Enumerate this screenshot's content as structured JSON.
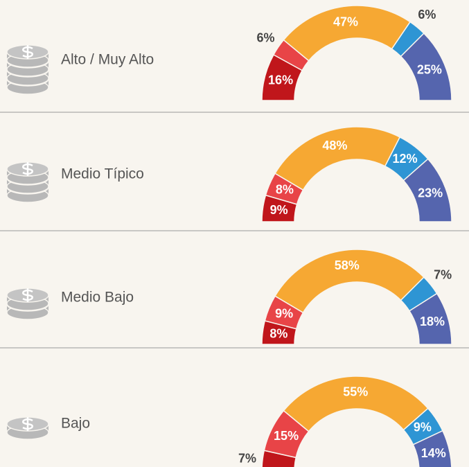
{
  "chart_data": [
    {
      "type": "half-donut",
      "title": "Alto / Muy Alto",
      "values": [
        16,
        6,
        47,
        6,
        25
      ],
      "value_labels": [
        "16%",
        "6%",
        "47%",
        "6%",
        "25%"
      ],
      "colors": [
        "#c0161b",
        "#e84447",
        "#f6a833",
        "#2e95d4",
        "#5565ae"
      ]
    },
    {
      "type": "half-donut",
      "title": "Medio Típico",
      "values": [
        9,
        8,
        48,
        12,
        23
      ],
      "value_labels": [
        "9%",
        "8%",
        "48%",
        "12%",
        "23%"
      ],
      "colors": [
        "#c0161b",
        "#e84447",
        "#f6a833",
        "#2e95d4",
        "#5565ae"
      ]
    },
    {
      "type": "half-donut",
      "title": "Medio Bajo",
      "values": [
        8,
        9,
        58,
        7,
        18
      ],
      "value_labels": [
        "8%",
        "9%",
        "58%",
        "7%",
        "18%"
      ],
      "colors": [
        "#c0161b",
        "#e84447",
        "#f6a833",
        "#2e95d4",
        "#5565ae"
      ]
    },
    {
      "type": "half-donut",
      "title": "Bajo",
      "values": [
        7,
        15,
        55,
        9,
        14
      ],
      "value_labels": [
        "7%",
        "15%",
        "55%",
        "9%",
        "14%"
      ],
      "colors": [
        "#c0161b",
        "#e84447",
        "#f6a833",
        "#2e95d4",
        "#5565ae"
      ]
    }
  ]
}
